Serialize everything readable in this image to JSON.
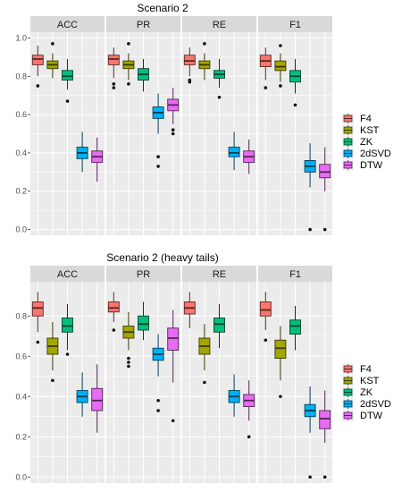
{
  "colors": {
    "F4": "#F8766D",
    "KST": "#A3A500",
    "ZK": "#00BF7D",
    "2dSVD": "#00B0F6",
    "DTW": "#E76BF3",
    "panel_bg": "#EBEBEB",
    "strip_bg": "#D9D9D9",
    "grid": "#FFFFFF"
  },
  "chart_data": [
    {
      "type": "boxplot",
      "title": "Scenario 2",
      "facets": [
        "ACC",
        "PR",
        "RE",
        "F1"
      ],
      "series_names": [
        "F4",
        "KST",
        "ZK",
        "2dSVD",
        "DTW"
      ],
      "yticks": [
        "0.0",
        "0.2",
        "0.4",
        "0.6",
        "0.8",
        "1.0"
      ],
      "ylim": [
        -0.03,
        1.03
      ],
      "legend_position": "right",
      "boxes": {
        "ACC": [
          {
            "q1": 0.86,
            "median": 0.89,
            "q3": 0.91,
            "whisker_low": 0.8,
            "whisker_high": 0.96,
            "outliers": [
              0.75
            ]
          },
          {
            "q1": 0.84,
            "median": 0.86,
            "q3": 0.88,
            "whisker_low": 0.79,
            "whisker_high": 0.92,
            "outliers": [
              0.97
            ]
          },
          {
            "q1": 0.78,
            "median": 0.8,
            "q3": 0.83,
            "whisker_low": 0.73,
            "whisker_high": 0.89,
            "outliers": [
              0.67
            ]
          },
          {
            "q1": 0.37,
            "median": 0.4,
            "q3": 0.43,
            "whisker_low": 0.3,
            "whisker_high": 0.51,
            "outliers": []
          },
          {
            "q1": 0.35,
            "median": 0.38,
            "q3": 0.41,
            "whisker_low": 0.25,
            "whisker_high": 0.48,
            "outliers": []
          }
        ],
        "PR": [
          {
            "q1": 0.86,
            "median": 0.89,
            "q3": 0.91,
            "whisker_low": 0.79,
            "whisker_high": 0.95,
            "outliers": [
              0.76,
              0.74
            ]
          },
          {
            "q1": 0.84,
            "median": 0.86,
            "q3": 0.88,
            "whisker_low": 0.78,
            "whisker_high": 0.92,
            "outliers": [
              0.97,
              0.76
            ]
          },
          {
            "q1": 0.78,
            "median": 0.81,
            "q3": 0.84,
            "whisker_low": 0.72,
            "whisker_high": 0.89,
            "outliers": []
          },
          {
            "q1": 0.58,
            "median": 0.61,
            "q3": 0.64,
            "whisker_low": 0.5,
            "whisker_high": 0.71,
            "outliers": [
              0.38,
              0.33
            ]
          },
          {
            "q1": 0.62,
            "median": 0.65,
            "q3": 0.68,
            "whisker_low": 0.55,
            "whisker_high": 0.74,
            "outliers": [
              0.52,
              0.5
            ]
          }
        ],
        "RE": [
          {
            "q1": 0.86,
            "median": 0.88,
            "q3": 0.91,
            "whisker_low": 0.8,
            "whisker_high": 0.95,
            "outliers": [
              0.78,
              0.77
            ]
          },
          {
            "q1": 0.84,
            "median": 0.86,
            "q3": 0.88,
            "whisker_low": 0.78,
            "whisker_high": 0.92,
            "outliers": [
              0.97
            ]
          },
          {
            "q1": 0.79,
            "median": 0.81,
            "q3": 0.83,
            "whisker_low": 0.74,
            "whisker_high": 0.89,
            "outliers": [
              0.69
            ]
          },
          {
            "q1": 0.38,
            "median": 0.4,
            "q3": 0.43,
            "whisker_low": 0.31,
            "whisker_high": 0.51,
            "outliers": []
          },
          {
            "q1": 0.35,
            "median": 0.38,
            "q3": 0.41,
            "whisker_low": 0.29,
            "whisker_high": 0.47,
            "outliers": []
          }
        ],
        "F1": [
          {
            "q1": 0.85,
            "median": 0.88,
            "q3": 0.91,
            "whisker_low": 0.78,
            "whisker_high": 0.95,
            "outliers": [
              0.74
            ]
          },
          {
            "q1": 0.83,
            "median": 0.85,
            "q3": 0.88,
            "whisker_low": 0.77,
            "whisker_high": 0.92,
            "outliers": [
              0.75,
              0.96
            ]
          },
          {
            "q1": 0.77,
            "median": 0.8,
            "q3": 0.83,
            "whisker_low": 0.71,
            "whisker_high": 0.89,
            "outliers": [
              0.65
            ]
          },
          {
            "q1": 0.3,
            "median": 0.33,
            "q3": 0.36,
            "whisker_low": 0.22,
            "whisker_high": 0.45,
            "outliers": [
              0.0
            ]
          },
          {
            "q1": 0.27,
            "median": 0.3,
            "q3": 0.34,
            "whisker_low": 0.2,
            "whisker_high": 0.43,
            "outliers": [
              0.0
            ]
          }
        ]
      }
    },
    {
      "type": "boxplot",
      "title": "Scenario 2 (heavy tails)",
      "facets": [
        "ACC",
        "PR",
        "RE",
        "F1"
      ],
      "series_names": [
        "F4",
        "KST",
        "ZK",
        "2dSVD",
        "DTW"
      ],
      "yticks": [
        "0.0",
        "0.2",
        "0.4",
        "0.6",
        "0.8"
      ],
      "ylim": [
        -0.03,
        0.97
      ],
      "legend_position": "right",
      "boxes": {
        "ACC": [
          {
            "q1": 0.8,
            "median": 0.84,
            "q3": 0.87,
            "whisker_low": 0.72,
            "whisker_high": 0.92,
            "outliers": [
              0.67
            ]
          },
          {
            "q1": 0.61,
            "median": 0.65,
            "q3": 0.69,
            "whisker_low": 0.53,
            "whisker_high": 0.77,
            "outliers": [
              0.48
            ]
          },
          {
            "q1": 0.72,
            "median": 0.75,
            "q3": 0.79,
            "whisker_low": 0.63,
            "whisker_high": 0.86,
            "outliers": [
              0.61
            ]
          },
          {
            "q1": 0.37,
            "median": 0.4,
            "q3": 0.43,
            "whisker_low": 0.3,
            "whisker_high": 0.52,
            "outliers": []
          },
          {
            "q1": 0.33,
            "median": 0.38,
            "q3": 0.44,
            "whisker_low": 0.22,
            "whisker_high": 0.56,
            "outliers": []
          }
        ],
        "PR": [
          {
            "q1": 0.82,
            "median": 0.84,
            "q3": 0.87,
            "whisker_low": 0.77,
            "whisker_high": 0.92,
            "outliers": [
              0.73
            ]
          },
          {
            "q1": 0.69,
            "median": 0.72,
            "q3": 0.75,
            "whisker_low": 0.63,
            "whisker_high": 0.82,
            "outliers": [
              0.59,
              0.57,
              0.55
            ]
          },
          {
            "q1": 0.73,
            "median": 0.76,
            "q3": 0.8,
            "whisker_low": 0.68,
            "whisker_high": 0.87,
            "outliers": []
          },
          {
            "q1": 0.58,
            "median": 0.61,
            "q3": 0.64,
            "whisker_low": 0.5,
            "whisker_high": 0.71,
            "outliers": [
              0.38,
              0.33
            ]
          },
          {
            "q1": 0.63,
            "median": 0.69,
            "q3": 0.74,
            "whisker_low": 0.47,
            "whisker_high": 0.83,
            "outliers": [
              0.28
            ]
          }
        ],
        "RE": [
          {
            "q1": 0.81,
            "median": 0.84,
            "q3": 0.87,
            "whisker_low": 0.74,
            "whisker_high": 0.92,
            "outliers": []
          },
          {
            "q1": 0.61,
            "median": 0.65,
            "q3": 0.69,
            "whisker_low": 0.53,
            "whisker_high": 0.76,
            "outliers": [
              0.47
            ]
          },
          {
            "q1": 0.72,
            "median": 0.76,
            "q3": 0.79,
            "whisker_low": 0.64,
            "whisker_high": 0.86,
            "outliers": []
          },
          {
            "q1": 0.37,
            "median": 0.4,
            "q3": 0.43,
            "whisker_low": 0.3,
            "whisker_high": 0.51,
            "outliers": []
          },
          {
            "q1": 0.35,
            "median": 0.38,
            "q3": 0.41,
            "whisker_low": 0.28,
            "whisker_high": 0.48,
            "outliers": [
              0.2
            ]
          }
        ],
        "F1": [
          {
            "q1": 0.8,
            "median": 0.83,
            "q3": 0.87,
            "whisker_low": 0.73,
            "whisker_high": 0.92,
            "outliers": [
              0.68
            ]
          },
          {
            "q1": 0.59,
            "median": 0.64,
            "q3": 0.68,
            "whisker_low": 0.48,
            "whisker_high": 0.75,
            "outliers": [
              0.4
            ]
          },
          {
            "q1": 0.71,
            "median": 0.75,
            "q3": 0.78,
            "whisker_low": 0.63,
            "whisker_high": 0.85,
            "outliers": []
          },
          {
            "q1": 0.3,
            "median": 0.33,
            "q3": 0.36,
            "whisker_low": 0.22,
            "whisker_high": 0.45,
            "outliers": [
              0.0
            ]
          },
          {
            "q1": 0.24,
            "median": 0.29,
            "q3": 0.33,
            "whisker_low": 0.17,
            "whisker_high": 0.43,
            "outliers": [
              0.0
            ]
          }
        ]
      }
    }
  ]
}
